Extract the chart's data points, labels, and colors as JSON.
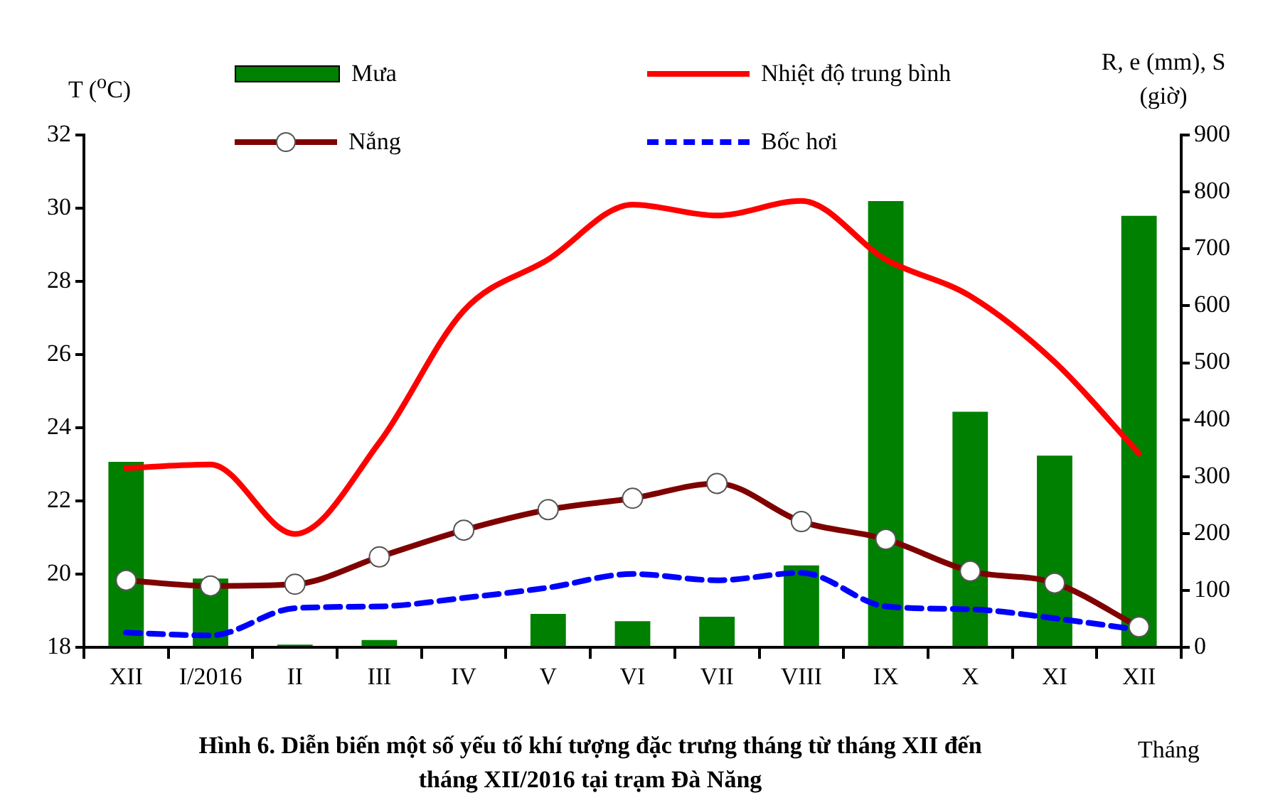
{
  "chart_data": {
    "type": "bar",
    "title": "Hình 6. Diễn biến một số yếu tố khí tượng đặc trưng tháng từ tháng XII đến tháng XII/2016 tại trạm Đà Năng",
    "xlabel": "Tháng",
    "ylabel": "T ($^{o}$C)",
    "y2label": "R, e (mm), S (giờ)",
    "categories": [
      "XII",
      "I/2016",
      "II",
      "III",
      "IV",
      "V",
      "VI",
      "VII",
      "VIII",
      "IX",
      "X",
      "XI",
      "XII"
    ],
    "series": [
      {
        "name": "Mưa",
        "axis": "y2",
        "color": "#008000",
        "values": [
          326,
          121,
          5,
          13,
          0,
          59,
          46,
          54,
          144,
          784,
          414,
          337,
          758
        ]
      },
      {
        "name": "Nhiệt độ trung bình",
        "type": "line",
        "color": "#ff0000",
        "marker": "none",
        "line_style": "solid",
        "values": [
          22.9,
          23.0,
          21.1,
          23.6,
          27.2,
          28.6,
          30.1,
          29.8,
          30.2,
          28.6,
          27.6,
          25.8,
          23.3
        ]
      },
      {
        "name": "Nắng",
        "type": "line",
        "axis": "y2",
        "color": "#7f0000",
        "marker": "circle",
        "line_style": "solid",
        "values": [
          118,
          108,
          111,
          159,
          206,
          242,
          262,
          288,
          221,
          190,
          134,
          113,
          36
        ]
      },
      {
        "name": "Bốc hơi",
        "type": "line",
        "axis": "y2",
        "color": "#0000ff",
        "marker": "none",
        "line_style": "dashed",
        "values": [
          26,
          21,
          69,
          72,
          87,
          105,
          129,
          118,
          131,
          72,
          67,
          51,
          31
        ]
      }
    ],
    "ylim": [
      18,
      32
    ],
    "yticks": [
      18,
      20,
      22,
      24,
      26,
      28,
      30,
      32
    ],
    "y2lim": [
      0,
      900
    ],
    "y2ticks": [
      0,
      100,
      200,
      300,
      400,
      500,
      600,
      700,
      800,
      900
    ],
    "grid": false,
    "legend": "top"
  }
}
